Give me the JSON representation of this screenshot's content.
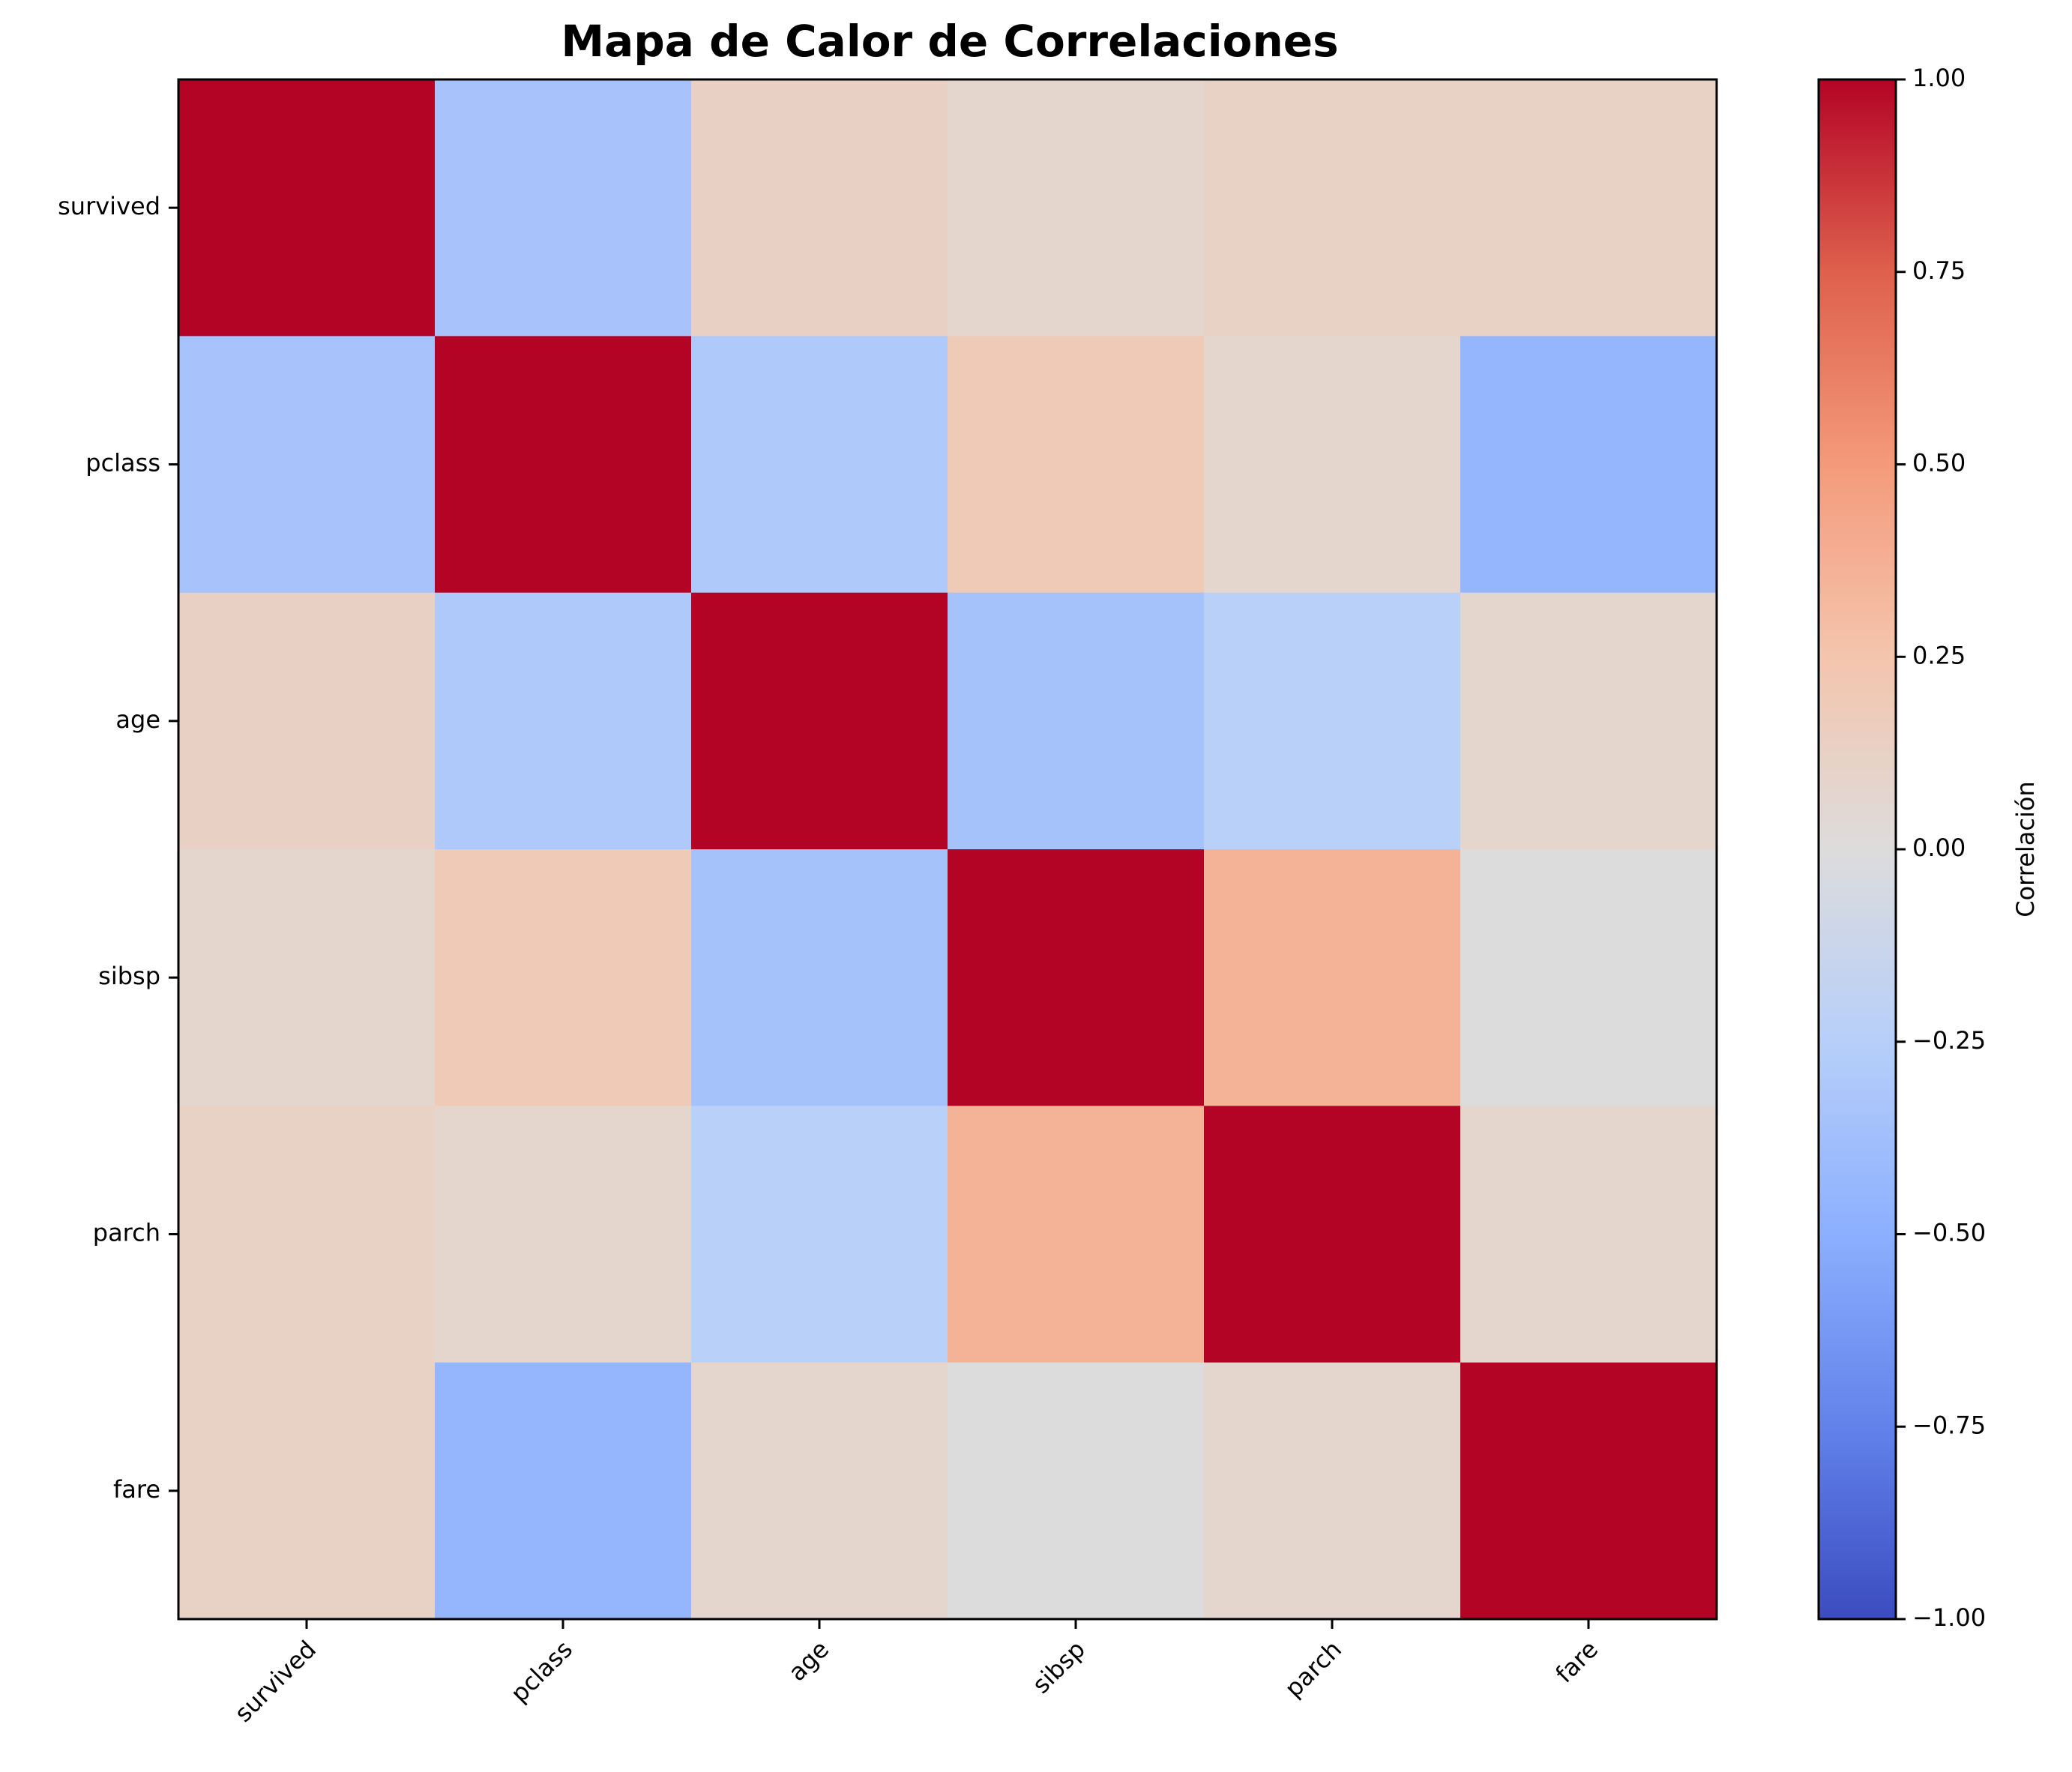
{
  "chart_data": {
    "type": "heatmap",
    "title": "Mapa de Calor de Correlaciones",
    "variables": [
      "survived",
      "pclass",
      "age",
      "sibsp",
      "parch",
      "fare"
    ],
    "matrix": [
      [
        1.0,
        -0.34,
        0.13,
        0.08,
        0.12,
        0.12
      ],
      [
        -0.34,
        1.0,
        -0.3,
        0.2,
        0.08,
        -0.45
      ],
      [
        0.13,
        -0.3,
        1.0,
        -0.35,
        -0.24,
        0.08
      ],
      [
        0.08,
        0.2,
        -0.35,
        1.0,
        0.36,
        0.0
      ],
      [
        0.12,
        0.08,
        -0.24,
        0.36,
        1.0,
        0.08
      ],
      [
        0.12,
        -0.45,
        0.08,
        0.0,
        0.08,
        1.0
      ]
    ],
    "colormap": "coolwarm",
    "colorbar": {
      "label": "Correlación",
      "range": [
        -1.0,
        1.0
      ],
      "ticks": [
        -1.0,
        -0.75,
        -0.5,
        -0.25,
        0.0,
        0.25,
        0.5,
        0.75,
        1.0
      ],
      "tick_labels": [
        "−1.00",
        "−0.75",
        "−0.50",
        "−0.25",
        "0.00",
        "0.25",
        "0.50",
        "0.75",
        "1.00"
      ]
    }
  }
}
